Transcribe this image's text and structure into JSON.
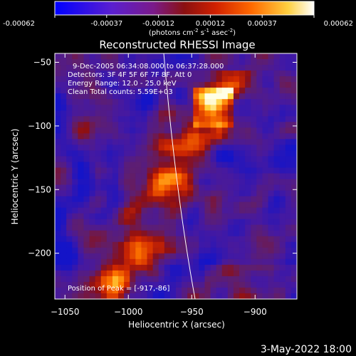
{
  "figure": {
    "title": "Reconstructed RHESSI Image",
    "colorbar": {
      "tick_labels": [
        "-0.00062",
        "-0.00037",
        "-0.00012",
        "0.00012",
        "0.00037",
        "0.00062"
      ],
      "units_html": "(photons cm<tspan dy='-4' font-size='7'>-2</tspan><tspan dy='4'> s</tspan><tspan dy='-4' font-size='7'>-1</tspan><tspan dy='4'> asec</tspan><tspan dy='-4' font-size='7'>-2</tspan><tspan dy='4'>)</tspan>",
      "units": "(photons cm-2 s-1 asec-2)",
      "range": [
        -0.00062,
        0.00062
      ]
    },
    "annotations": {
      "time": "9-Dec-2005 06:34:08.000 to 06:37:28.000",
      "detectors": "Detectors: 3F 4F 5F 6F 7F 8F, Att 0",
      "energy": "Energy Range: 12.0 - 25.0 keV",
      "clean": "Clean     Total counts: 5.59E+03",
      "peak": "Position of Peak = [-917,-86]"
    },
    "x_axis": {
      "label": "Heliocentric X (arcsec)",
      "ticks": [
        "−1050",
        "−1000",
        "−950",
        "−900"
      ],
      "tick_values": [
        -1050,
        -1000,
        -950,
        -900
      ],
      "range": [
        -1058,
        -867
      ]
    },
    "y_axis": {
      "label": "Heliocentric Y (arcsec)",
      "ticks": [
        "−50",
        "−100",
        "−150",
        "−200"
      ],
      "tick_values": [
        -50,
        -100,
        -150,
        -200
      ],
      "range": [
        -236,
        -43
      ]
    },
    "footer": "3-May-2022 18:00"
  }
}
